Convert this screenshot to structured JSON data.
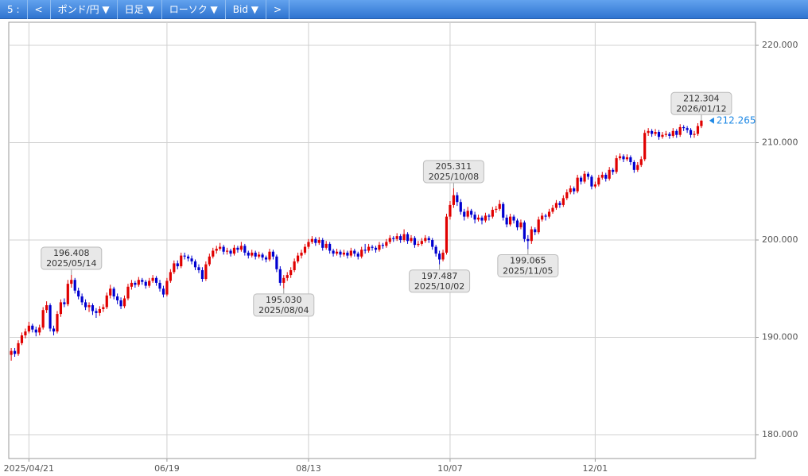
{
  "toolbar": {
    "items": [
      "5 :",
      "<",
      "ポンド/円 ▼",
      "日足 ▼",
      "ローソク ▼",
      "Bid ▼",
      ">"
    ]
  },
  "chart_data": {
    "type": "candlestick",
    "ohlc": [
      [
        188.2,
        188.9,
        187.6,
        188.6
      ],
      [
        188.6,
        188.9,
        188.0,
        188.3
      ],
      [
        188.3,
        189.7,
        188.1,
        189.4
      ],
      [
        189.4,
        190.5,
        189.2,
        190.2
      ],
      [
        190.2,
        190.9,
        189.9,
        190.6
      ],
      [
        190.6,
        191.6,
        190.4,
        191.2
      ],
      [
        191.2,
        191.4,
        190.5,
        190.8
      ],
      [
        190.8,
        191.1,
        190.1,
        190.5
      ],
      [
        190.5,
        191.3,
        190.2,
        191.0
      ],
      [
        191.0,
        193.1,
        190.8,
        192.8
      ],
      [
        192.8,
        193.7,
        192.5,
        193.3
      ],
      [
        193.3,
        193.5,
        190.6,
        190.9
      ],
      [
        190.9,
        191.2,
        190.2,
        190.6
      ],
      [
        190.6,
        192.7,
        190.4,
        192.4
      ],
      [
        192.4,
        193.9,
        192.1,
        193.6
      ],
      [
        193.6,
        194.0,
        193.1,
        193.4
      ],
      [
        193.4,
        195.9,
        193.2,
        195.5
      ],
      [
        195.5,
        196.408,
        195.1,
        195.9
      ],
      [
        195.9,
        196.1,
        194.5,
        194.8
      ],
      [
        194.8,
        195.1,
        193.9,
        194.2
      ],
      [
        194.2,
        194.5,
        193.3,
        193.6
      ],
      [
        193.6,
        193.9,
        192.8,
        193.1
      ],
      [
        193.1,
        193.6,
        192.6,
        193.3
      ],
      [
        193.3,
        193.5,
        192.3,
        192.7
      ],
      [
        192.7,
        193.0,
        192.0,
        192.5
      ],
      [
        192.5,
        193.2,
        192.2,
        192.9
      ],
      [
        192.9,
        193.4,
        192.6,
        193.1
      ],
      [
        193.1,
        194.6,
        192.9,
        194.3
      ],
      [
        194.3,
        195.4,
        194.0,
        195.0
      ],
      [
        195.0,
        195.2,
        193.9,
        194.2
      ],
      [
        194.2,
        194.5,
        193.4,
        193.8
      ],
      [
        193.8,
        194.1,
        192.9,
        193.2
      ],
      [
        193.2,
        194.3,
        193.0,
        194.0
      ],
      [
        194.0,
        195.5,
        193.8,
        195.2
      ],
      [
        195.2,
        195.9,
        194.9,
        195.6
      ],
      [
        195.6,
        195.8,
        195.1,
        195.4
      ],
      [
        195.4,
        196.2,
        195.2,
        195.9
      ],
      [
        195.9,
        196.1,
        195.4,
        195.7
      ],
      [
        195.7,
        195.9,
        195.0,
        195.3
      ],
      [
        195.3,
        196.1,
        195.1,
        195.8
      ],
      [
        195.8,
        196.4,
        195.6,
        196.1
      ],
      [
        196.1,
        196.3,
        195.3,
        195.6
      ],
      [
        195.6,
        195.9,
        194.7,
        195.0
      ],
      [
        195.0,
        195.3,
        194.1,
        194.4
      ],
      [
        194.4,
        196.1,
        194.2,
        195.8
      ],
      [
        195.8,
        197.0,
        195.6,
        196.7
      ],
      [
        196.7,
        197.9,
        196.5,
        197.6
      ],
      [
        197.6,
        197.9,
        197.0,
        197.3
      ],
      [
        197.3,
        198.7,
        197.1,
        198.4
      ],
      [
        198.4,
        198.7,
        198.0,
        198.3
      ],
      [
        198.3,
        198.5,
        197.8,
        198.1
      ],
      [
        198.1,
        198.4,
        197.5,
        197.8
      ],
      [
        197.8,
        198.0,
        196.9,
        197.2
      ],
      [
        197.2,
        197.5,
        196.6,
        196.9
      ],
      [
        196.9,
        197.2,
        195.7,
        196.0
      ],
      [
        196.0,
        197.8,
        195.8,
        197.5
      ],
      [
        197.5,
        198.6,
        197.3,
        198.3
      ],
      [
        198.3,
        199.2,
        198.1,
        198.9
      ],
      [
        198.9,
        199.4,
        198.6,
        199.1
      ],
      [
        199.1,
        199.7,
        198.9,
        199.3
      ],
      [
        199.3,
        199.5,
        198.5,
        198.8
      ],
      [
        198.8,
        199.2,
        198.5,
        198.9
      ],
      [
        198.9,
        199.1,
        198.3,
        198.6
      ],
      [
        198.6,
        199.5,
        198.4,
        199.2
      ],
      [
        199.2,
        199.4,
        198.7,
        199.0
      ],
      [
        199.0,
        199.8,
        198.8,
        199.4
      ],
      [
        199.4,
        199.6,
        198.4,
        198.7
      ],
      [
        198.7,
        198.9,
        198.1,
        198.4
      ],
      [
        198.4,
        199.0,
        198.2,
        198.7
      ],
      [
        198.7,
        198.9,
        198.0,
        198.3
      ],
      [
        198.3,
        198.8,
        198.1,
        198.5
      ],
      [
        198.5,
        198.7,
        197.9,
        198.2
      ],
      [
        198.2,
        198.4,
        197.7,
        198.0
      ],
      [
        198.0,
        199.1,
        197.8,
        198.8
      ],
      [
        198.8,
        199.0,
        198.0,
        198.3
      ],
      [
        198.3,
        198.5,
        196.7,
        197.0
      ],
      [
        197.0,
        197.3,
        195.3,
        195.6
      ],
      [
        195.6,
        196.4,
        195.03,
        196.1
      ],
      [
        196.1,
        196.7,
        195.8,
        196.4
      ],
      [
        196.4,
        197.2,
        196.1,
        196.9
      ],
      [
        196.9,
        198.1,
        196.7,
        197.8
      ],
      [
        197.8,
        198.7,
        197.6,
        198.4
      ],
      [
        198.4,
        199.0,
        198.1,
        198.7
      ],
      [
        198.7,
        199.6,
        198.5,
        199.3
      ],
      [
        199.3,
        200.1,
        199.1,
        199.8
      ],
      [
        199.8,
        200.4,
        199.6,
        200.1
      ],
      [
        200.1,
        200.3,
        199.4,
        199.7
      ],
      [
        199.7,
        200.3,
        199.5,
        200.0
      ],
      [
        200.0,
        200.2,
        198.9,
        199.2
      ],
      [
        199.2,
        199.9,
        199.0,
        199.6
      ],
      [
        199.6,
        199.8,
        198.6,
        198.9
      ],
      [
        198.9,
        199.1,
        198.3,
        198.6
      ],
      [
        198.6,
        199.1,
        198.4,
        198.8
      ],
      [
        198.8,
        199.0,
        198.2,
        198.5
      ],
      [
        198.5,
        199.0,
        198.3,
        198.7
      ],
      [
        198.7,
        198.9,
        198.1,
        198.4
      ],
      [
        198.4,
        199.2,
        198.2,
        198.9
      ],
      [
        198.9,
        199.1,
        198.3,
        198.6
      ],
      [
        198.6,
        198.8,
        198.0,
        198.3
      ],
      [
        198.3,
        199.3,
        198.1,
        199.0
      ],
      [
        199.0,
        199.6,
        198.6,
        198.9
      ],
      [
        198.9,
        199.6,
        198.7,
        199.3
      ],
      [
        199.3,
        199.5,
        198.9,
        199.2
      ],
      [
        199.2,
        199.4,
        198.7,
        199.0
      ],
      [
        199.0,
        199.8,
        198.8,
        199.5
      ],
      [
        199.5,
        199.7,
        199.1,
        199.4
      ],
      [
        199.4,
        200.1,
        199.2,
        199.8
      ],
      [
        199.8,
        200.5,
        199.6,
        200.2
      ],
      [
        200.2,
        200.4,
        199.8,
        200.1
      ],
      [
        200.1,
        200.7,
        199.9,
        200.4
      ],
      [
        200.4,
        200.6,
        199.7,
        200.0
      ],
      [
        200.0,
        201.1,
        199.8,
        200.6
      ],
      [
        200.6,
        200.8,
        199.6,
        199.9
      ],
      [
        199.9,
        200.5,
        199.7,
        200.2
      ],
      [
        200.2,
        200.4,
        199.2,
        199.5
      ],
      [
        199.5,
        199.9,
        199.3,
        199.6
      ],
      [
        199.6,
        200.2,
        199.4,
        199.9
      ],
      [
        199.9,
        200.5,
        199.7,
        200.2
      ],
      [
        200.2,
        200.4,
        199.7,
        200.0
      ],
      [
        200.0,
        200.2,
        199.0,
        199.3
      ],
      [
        199.3,
        199.5,
        198.3,
        198.6
      ],
      [
        198.6,
        198.9,
        197.487,
        198.0
      ],
      [
        198.0,
        199.0,
        197.8,
        198.7
      ],
      [
        198.7,
        202.7,
        198.5,
        202.4
      ],
      [
        202.4,
        204.0,
        202.1,
        203.6
      ],
      [
        203.6,
        205.311,
        203.3,
        204.6
      ],
      [
        204.6,
        204.9,
        203.5,
        203.9
      ],
      [
        203.9,
        204.2,
        202.6,
        202.9
      ],
      [
        202.9,
        203.2,
        202.0,
        202.4
      ],
      [
        202.4,
        203.4,
        202.2,
        203.0
      ],
      [
        203.0,
        203.2,
        202.3,
        202.6
      ],
      [
        202.6,
        202.9,
        201.7,
        202.1
      ],
      [
        202.1,
        202.6,
        201.9,
        202.3
      ],
      [
        202.3,
        202.5,
        201.6,
        202.0
      ],
      [
        202.0,
        202.8,
        201.8,
        202.5
      ],
      [
        202.5,
        202.7,
        202.0,
        202.4
      ],
      [
        202.4,
        203.4,
        202.2,
        203.1
      ],
      [
        203.1,
        203.5,
        202.8,
        203.2
      ],
      [
        203.2,
        204.1,
        203.0,
        203.7
      ],
      [
        203.7,
        203.9,
        202.0,
        202.3
      ],
      [
        202.3,
        202.6,
        201.3,
        201.6
      ],
      [
        201.6,
        202.7,
        201.4,
        202.4
      ],
      [
        202.4,
        202.6,
        201.7,
        202.0
      ],
      [
        202.0,
        202.2,
        201.0,
        201.3
      ],
      [
        201.3,
        202.1,
        201.1,
        201.8
      ],
      [
        201.8,
        202.0,
        199.8,
        200.1
      ],
      [
        200.1,
        200.5,
        199.065,
        199.9
      ],
      [
        199.9,
        201.4,
        199.6,
        201.1
      ],
      [
        201.1,
        201.3,
        200.5,
        200.8
      ],
      [
        200.8,
        202.4,
        200.6,
        202.1
      ],
      [
        202.1,
        202.8,
        201.9,
        202.5
      ],
      [
        202.5,
        202.7,
        202.0,
        202.4
      ],
      [
        202.4,
        203.2,
        202.2,
        202.9
      ],
      [
        202.9,
        203.6,
        202.7,
        203.3
      ],
      [
        203.3,
        204.1,
        203.1,
        203.8
      ],
      [
        203.8,
        204.0,
        203.3,
        203.6
      ],
      [
        203.6,
        204.6,
        203.4,
        204.3
      ],
      [
        204.3,
        205.2,
        204.1,
        204.9
      ],
      [
        204.9,
        205.6,
        204.7,
        205.3
      ],
      [
        205.3,
        205.5,
        204.7,
        205.0
      ],
      [
        205.0,
        206.7,
        204.8,
        206.4
      ],
      [
        206.4,
        206.6,
        205.7,
        206.0
      ],
      [
        206.0,
        207.1,
        205.8,
        206.8
      ],
      [
        206.8,
        207.0,
        206.2,
        206.5
      ],
      [
        206.5,
        206.7,
        205.2,
        205.5
      ],
      [
        205.5,
        206.0,
        205.3,
        205.7
      ],
      [
        205.7,
        206.7,
        205.5,
        206.4
      ],
      [
        206.4,
        207.0,
        206.2,
        206.7
      ],
      [
        206.7,
        206.9,
        206.0,
        206.3
      ],
      [
        206.3,
        207.5,
        206.1,
        207.2
      ],
      [
        207.2,
        207.4,
        206.7,
        207.0
      ],
      [
        207.0,
        208.7,
        206.8,
        208.4
      ],
      [
        208.4,
        208.9,
        208.2,
        208.6
      ],
      [
        208.6,
        208.8,
        208.0,
        208.3
      ],
      [
        208.3,
        208.8,
        208.1,
        208.5
      ],
      [
        208.5,
        208.7,
        207.7,
        208.0
      ],
      [
        208.0,
        208.2,
        206.9,
        207.2
      ],
      [
        207.2,
        208.0,
        207.0,
        207.7
      ],
      [
        207.7,
        208.6,
        207.5,
        208.3
      ],
      [
        208.3,
        211.3,
        208.1,
        211.0
      ],
      [
        211.0,
        211.5,
        210.7,
        211.2
      ],
      [
        211.2,
        211.4,
        210.6,
        210.9
      ],
      [
        210.9,
        211.4,
        210.7,
        211.1
      ],
      [
        211.1,
        211.3,
        210.3,
        210.6
      ],
      [
        210.6,
        211.1,
        210.4,
        210.8
      ],
      [
        210.8,
        211.2,
        210.6,
        210.9
      ],
      [
        210.9,
        211.1,
        210.4,
        210.7
      ],
      [
        210.7,
        211.5,
        210.5,
        211.2
      ],
      [
        211.2,
        211.4,
        210.5,
        210.8
      ],
      [
        210.8,
        211.9,
        210.6,
        211.6
      ],
      [
        211.6,
        211.8,
        211.2,
        211.5
      ],
      [
        211.5,
        211.7,
        211.0,
        211.3
      ],
      [
        211.3,
        211.5,
        210.5,
        210.8
      ],
      [
        210.8,
        211.2,
        210.5,
        210.9
      ],
      [
        210.9,
        212.0,
        210.7,
        211.7
      ],
      [
        211.7,
        212.304,
        211.5,
        212.265
      ]
    ],
    "up_color": "#e00000",
    "down_color": "#0000d0",
    "ylim": [
      177.55,
      222.37
    ],
    "yticks": [
      {
        "value": 180,
        "label": "180.000"
      },
      {
        "value": 190,
        "label": "190.000"
      },
      {
        "value": 200,
        "label": "200.000"
      },
      {
        "value": 210,
        "label": "210.000"
      },
      {
        "value": 220,
        "label": "220.000"
      }
    ],
    "xlim": [
      -0.7,
      210.3
    ],
    "xticks": [
      {
        "value": 5,
        "label": "2025/04/21"
      },
      {
        "value": 44,
        "label": "06/19"
      },
      {
        "value": 84,
        "label": "08/13"
      },
      {
        "value": 124,
        "label": "10/07"
      },
      {
        "value": 165,
        "label": "12/01"
      }
    ],
    "grid": true,
    "annotations": [
      {
        "value": 196.408,
        "date": "2025/05/14"
      },
      {
        "value": 195.03,
        "label": "195.030",
        "date": "2025/08/04"
      },
      {
        "value": 205.311,
        "date": "2025/10/08"
      },
      {
        "value": 197.487,
        "date": "2025/10/02"
      },
      {
        "value": 199.065,
        "date": "2025/11/05"
      },
      {
        "value": 212.304,
        "date": "2026/01/12"
      }
    ],
    "price_color": "#1e88e5"
  }
}
